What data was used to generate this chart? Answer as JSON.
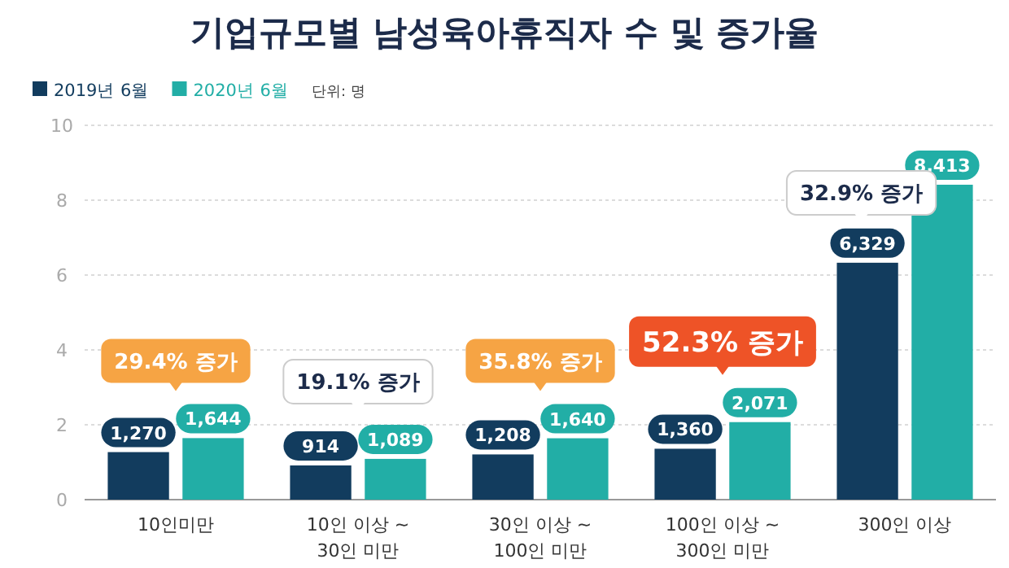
{
  "chart_data": {
    "type": "bar",
    "title": "기업규모별 남성육아휴직자 수 및 증가율",
    "categories": [
      "10인미만",
      "10인 이상 ~\n30인 미만",
      "30인 이상 ~\n100인 미만",
      "100인 이상 ~\n300인 미만",
      "300인 이상"
    ],
    "series": [
      {
        "name": "2019년 6월",
        "color": "#123c5e",
        "axis": "y2",
        "values": [
          1270,
          914,
          1208,
          1360,
          6329
        ],
        "value_labels": [
          "1,270",
          "914",
          "1,208",
          "1,360",
          "6,329"
        ]
      },
      {
        "name": "2020년 6월",
        "color": "#22aea6",
        "axis": "y2",
        "values": [
          1644,
          1089,
          1640,
          2071,
          8413
        ],
        "value_labels": [
          "1,644",
          "1,089",
          "1,640",
          "2,071",
          "8,413"
        ]
      }
    ],
    "ylim": [
      0,
      10
    ],
    "yticks": [
      0,
      2,
      4,
      6,
      8,
      10
    ],
    "y2lim": [
      0,
      10000
    ],
    "grid": "y",
    "legend": "top left",
    "annotations": [
      "29.4% 증가",
      "19.1% 증가",
      "35.8% 증가",
      "52.3% 증가",
      "32.9% 증가",
      "단위: 명"
    ]
  }
}
